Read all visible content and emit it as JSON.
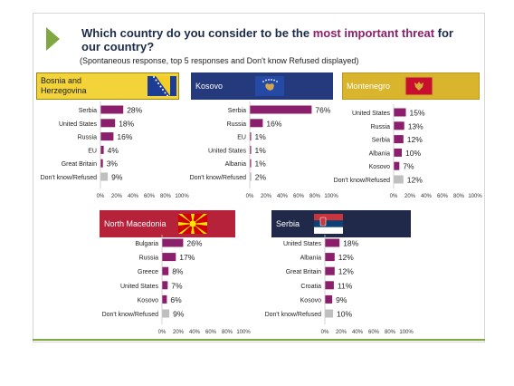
{
  "title": {
    "prefix": "Which country do you consider to be the ",
    "highlight": "most important threat",
    "suffix": " for our country?"
  },
  "subtitle": "(Spontaneous response, top 5 responses and Don't know Refused displayed)",
  "colors": {
    "bar": "#8b1f6b",
    "dk_bar": "#bfbfbf",
    "arrow": "#7fa843",
    "title_highlight": "#8b1f6b"
  },
  "panels": [
    {
      "name": "Bosnia and\nHerzegovina",
      "header_bg": "#f2d43a",
      "header_border": "#9c8612",
      "text_color": "#1a1a1a",
      "flag": "bosnia-flag-icon"
    },
    {
      "name": "Kosovo",
      "header_bg": "#243a7c",
      "header_border": "#243a7c",
      "text_color": "#ffffff",
      "flag": "kosovo-flag-icon"
    },
    {
      "name": "Montenegro",
      "header_bg": "#d8b52c",
      "header_border": "#b89a20",
      "text_color": "#ffffff",
      "flag": "montenegro-flag-icon"
    },
    {
      "name": "North Macedonia",
      "header_bg": "#b5223a",
      "header_border": "#b5223a",
      "text_color": "#ffffff",
      "flag": "north-macedonia-flag-icon"
    },
    {
      "name": "Serbia",
      "header_bg": "#20294a",
      "header_border": "#20294a",
      "text_color": "#ffffff",
      "flag": "serbia-flag-icon"
    }
  ],
  "chart_data": [
    {
      "type": "bar",
      "orientation": "horizontal",
      "title": "Bosnia and Herzegovina",
      "categories": [
        "Serbia",
        "United States",
        "Russia",
        "EU",
        "Great Britain",
        "Don't know/Refused"
      ],
      "values": [
        28,
        18,
        16,
        4,
        3,
        9
      ],
      "value_labels": [
        "28%",
        "18%",
        "16%",
        "4%",
        "3%",
        "9%"
      ],
      "xlim": [
        0,
        100
      ],
      "xticks": [
        "0%",
        "20%",
        "40%",
        "60%",
        "80%",
        "100%"
      ]
    },
    {
      "type": "bar",
      "orientation": "horizontal",
      "title": "Kosovo",
      "categories": [
        "Serbia",
        "Russia",
        "EU",
        "United States",
        "Albania",
        "Don't know/Refused"
      ],
      "values": [
        76,
        16,
        1,
        1,
        1,
        2
      ],
      "value_labels": [
        "76%",
        "16%",
        "1%",
        "1%",
        "1%",
        "2%"
      ],
      "xlim": [
        0,
        100
      ],
      "xticks": [
        "0%",
        "20%",
        "40%",
        "60%",
        "80%",
        "100%"
      ]
    },
    {
      "type": "bar",
      "orientation": "horizontal",
      "title": "Montenegro",
      "categories": [
        "United States",
        "Russia",
        "Serbia",
        "Albania",
        "Kosovo",
        "Don't know/Refused"
      ],
      "values": [
        15,
        13,
        12,
        10,
        7,
        12
      ],
      "value_labels": [
        "15%",
        "13%",
        "12%",
        "10%",
        "7%",
        "12%"
      ],
      "xlim": [
        0,
        100
      ],
      "xticks": [
        "0%",
        "20%",
        "40%",
        "60%",
        "80%",
        "100%"
      ]
    },
    {
      "type": "bar",
      "orientation": "horizontal",
      "title": "North Macedonia",
      "categories": [
        "Bulgaria",
        "Russia",
        "Greece",
        "United States",
        "Kosovo",
        "Don't know/Refused"
      ],
      "values": [
        26,
        17,
        8,
        7,
        6,
        9
      ],
      "value_labels": [
        "26%",
        "17%",
        "8%",
        "7%",
        "6%",
        "9%"
      ],
      "xlim": [
        0,
        100
      ],
      "xticks": [
        "0%",
        "20%",
        "40%",
        "60%",
        "80%",
        "100%"
      ]
    },
    {
      "type": "bar",
      "orientation": "horizontal",
      "title": "Serbia",
      "categories": [
        "United States",
        "Albania",
        "Great Britain",
        "Croatia",
        "Kosovo",
        "Don't know/Refused"
      ],
      "values": [
        18,
        12,
        12,
        11,
        9,
        10
      ],
      "value_labels": [
        "18%",
        "12%",
        "12%",
        "11%",
        "9%",
        "10%"
      ],
      "xlim": [
        0,
        100
      ],
      "xticks": [
        "0%",
        "20%",
        "40%",
        "60%",
        "80%",
        "100%"
      ]
    }
  ]
}
